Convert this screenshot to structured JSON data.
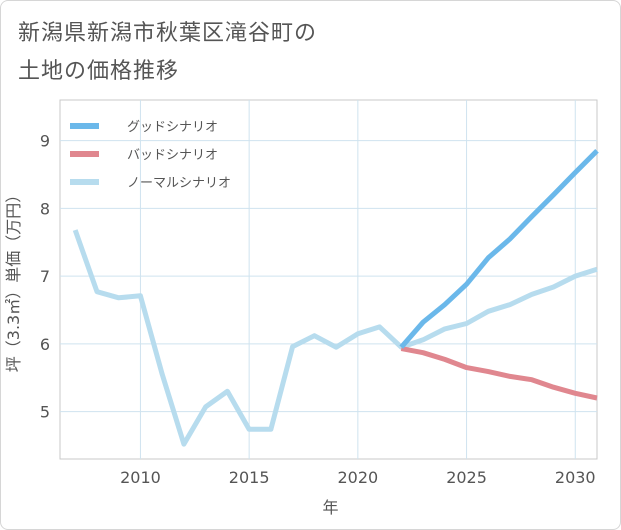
{
  "page": {
    "title_line1": "新潟県新潟市秋葉区滝谷町の",
    "title_line2": "土地の価格推移"
  },
  "chart_data": {
    "type": "line",
    "title": "新潟県新潟市秋葉区滝谷町の土地の価格推移",
    "xlabel": "年",
    "ylabel": "坪（3.3㎡）単価（万円）",
    "xlim": [
      2006.3,
      2031
    ],
    "ylim": [
      4.3,
      9.6
    ],
    "xticks": [
      2010,
      2015,
      2020,
      2025,
      2030
    ],
    "xtick_labels": [
      "2010",
      "2015",
      "2020",
      "2025",
      "2030"
    ],
    "yticks": [
      5,
      6,
      7,
      8,
      9
    ],
    "ytick_labels": [
      "5",
      "6",
      "7",
      "8",
      "9"
    ],
    "grid": true,
    "legend_position": "top-left",
    "series": [
      {
        "name": "グッドシナリオ",
        "color": "#6bb8ea",
        "x": [
          2022,
          2023,
          2024,
          2025,
          2026,
          2027,
          2028,
          2029,
          2030,
          2031
        ],
        "values": [
          5.95,
          6.32,
          6.58,
          6.88,
          7.27,
          7.55,
          7.88,
          8.2,
          8.53,
          8.85
        ]
      },
      {
        "name": "バッドシナリオ",
        "color": "#e0878f",
        "x": [
          2022,
          2023,
          2024,
          2025,
          2026,
          2027,
          2028,
          2029,
          2030,
          2031
        ],
        "values": [
          5.93,
          5.87,
          5.77,
          5.65,
          5.59,
          5.52,
          5.47,
          5.36,
          5.27,
          5.2
        ]
      },
      {
        "name": "ノーマルシナリオ",
        "color": "#b7dcee",
        "x": [
          2007,
          2008,
          2009,
          2010,
          2011,
          2012,
          2013,
          2014,
          2015,
          2016,
          2017,
          2018,
          2019,
          2020,
          2021,
          2022,
          2023,
          2024,
          2025,
          2026,
          2027,
          2028,
          2029,
          2030,
          2031
        ],
        "values": [
          7.68,
          6.77,
          6.68,
          6.71,
          5.55,
          4.52,
          5.07,
          5.3,
          4.74,
          4.74,
          5.96,
          6.12,
          5.95,
          6.15,
          6.25,
          5.95,
          6.06,
          6.22,
          6.3,
          6.48,
          6.58,
          6.73,
          6.84,
          7.0,
          7.1
        ]
      }
    ]
  }
}
